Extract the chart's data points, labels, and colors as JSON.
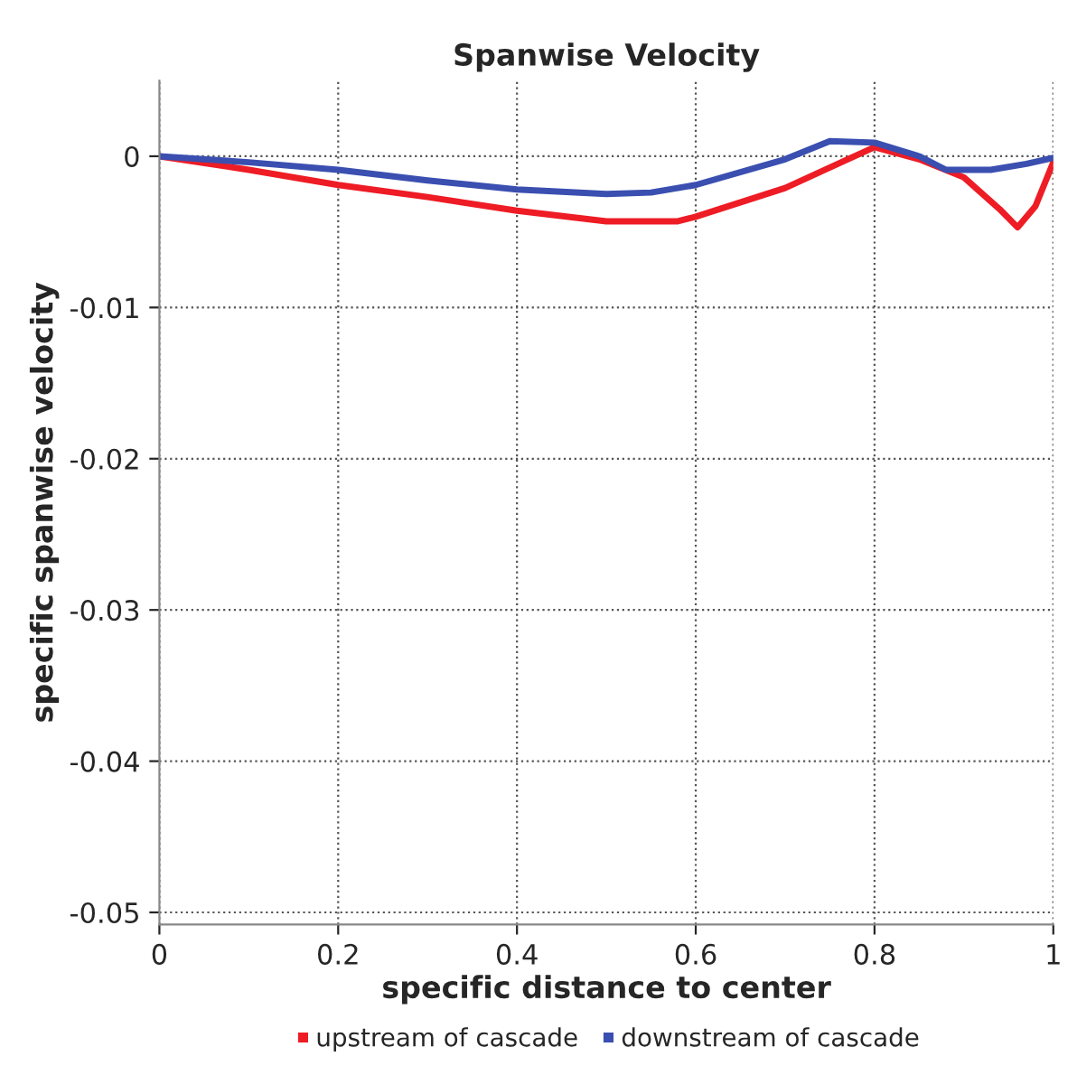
{
  "chart_data": {
    "type": "line",
    "title": "Spanwise Velocity",
    "xlabel": "specific distance to center",
    "ylabel": "specific spanwise velocity",
    "xlim": [
      0,
      1
    ],
    "ylim": [
      -0.0508,
      0.005
    ],
    "xticks": [
      0,
      0.2,
      0.4,
      0.6,
      0.8,
      {
        "value": 1,
        "label": "1"
      }
    ],
    "yticks": [
      -0.05,
      -0.04,
      -0.03,
      -0.02,
      -0.01,
      0
    ],
    "grid": true,
    "legend": "bottom",
    "marker": "none",
    "line_style": "solid",
    "series": [
      {
        "name": "upstream of cascade",
        "color": "#ee1c25",
        "x": [
          0,
          0.1,
          0.2,
          0.3,
          0.4,
          0.5,
          0.58,
          0.6,
          0.7,
          0.77,
          0.8,
          0.85,
          0.9,
          0.94,
          0.96,
          0.98,
          1.0
        ],
        "values": [
          0,
          -0.0009,
          -0.0019,
          -0.0027,
          -0.0036,
          -0.0043,
          -0.0043,
          -0.004,
          -0.0021,
          -0.0002,
          0.0006,
          -0.0002,
          -0.0014,
          -0.0035,
          -0.0047,
          -0.0033,
          -0.0004
        ]
      },
      {
        "name": "downstream of cascade",
        "color": "#3a4fb0",
        "x": [
          0,
          0.1,
          0.2,
          0.3,
          0.4,
          0.5,
          0.55,
          0.6,
          0.7,
          0.75,
          0.8,
          0.85,
          0.88,
          0.93,
          0.97,
          1.0
        ],
        "values": [
          0,
          -0.0004,
          -0.0009,
          -0.0016,
          -0.0022,
          -0.0025,
          -0.0024,
          -0.0019,
          -0.0002,
          0.001,
          0.0009,
          0,
          -0.0009,
          -0.0009,
          -0.0005,
          -0.0001
        ]
      }
    ]
  }
}
